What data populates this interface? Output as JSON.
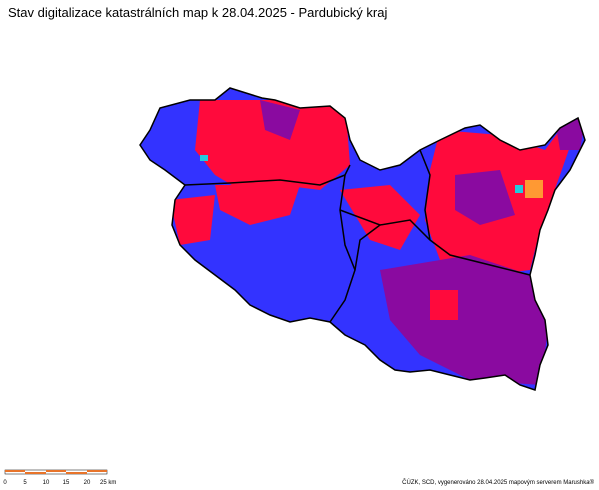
{
  "header": {
    "title": "Stav digitalizace katastrálních map k 28.04.2025 - Pardubický kraj"
  },
  "scale_bar": {
    "labels": [
      "0",
      "5",
      "10",
      "15",
      "20",
      "25 km"
    ]
  },
  "footer": {
    "attribution": "ČÚZK, SCD, vygenerováno 28.04.2025 mapovým serverem Marushka®"
  }
}
